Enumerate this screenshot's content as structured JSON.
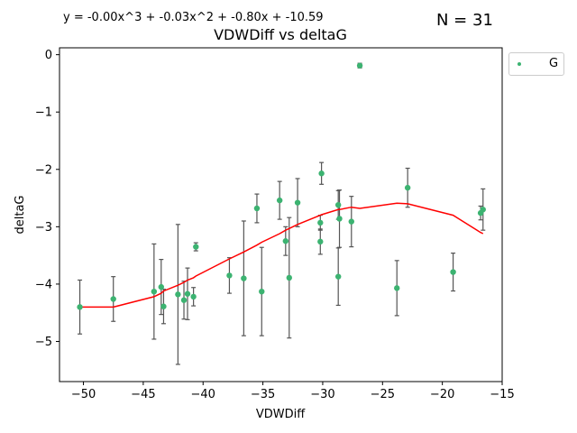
{
  "header": {
    "equation": "y = -0.00x^3 + -0.03x^2 + -0.80x + -10.59",
    "count": "N = 31"
  },
  "chart_data": {
    "type": "scatter",
    "title": "VDWDiff vs deltaG",
    "xlabel": "VDWDiff",
    "ylabel": "deltaG",
    "xlim": [
      -52,
      -15
    ],
    "ylim": [
      -5.7,
      0.12
    ],
    "xticks": [
      -50,
      -45,
      -40,
      -35,
      -30,
      -25,
      -20,
      -15
    ],
    "yticks": [
      0,
      -1,
      -2,
      -3,
      -4,
      -5
    ],
    "xtick_labels": [
      "−50",
      "−45",
      "−40",
      "−35",
      "−30",
      "−25",
      "−20",
      "−15"
    ],
    "ytick_labels": [
      "0",
      "−1",
      "−2",
      "−3",
      "−4",
      "−5"
    ],
    "grid": false,
    "legend": {
      "position": "outside-top-right",
      "entries": [
        "G"
      ]
    },
    "colors": {
      "points": "#3cb371",
      "errorbars": "#555555",
      "fit": "#ff0000"
    },
    "series": [
      {
        "name": "G",
        "points": [
          {
            "x": -50.3,
            "y": -4.4,
            "err": 0.47
          },
          {
            "x": -47.5,
            "y": -4.26,
            "err": 0.39
          },
          {
            "x": -44.1,
            "y": -4.13,
            "err": 0.83
          },
          {
            "x": -43.5,
            "y": -4.05,
            "err": 0.48
          },
          {
            "x": -43.3,
            "y": -4.39,
            "err": 0.3
          },
          {
            "x": -42.1,
            "y": -4.18,
            "err": 1.22
          },
          {
            "x": -41.6,
            "y": -4.28,
            "err": 0.33
          },
          {
            "x": -41.3,
            "y": -4.17,
            "err": 0.45
          },
          {
            "x": -40.8,
            "y": -4.22,
            "err": 0.16
          },
          {
            "x": -40.6,
            "y": -3.35,
            "err": 0.07
          },
          {
            "x": -37.8,
            "y": -3.85,
            "err": 0.31
          },
          {
            "x": -36.6,
            "y": -3.9,
            "err": 1.0
          },
          {
            "x": -35.5,
            "y": -2.68,
            "err": 0.25
          },
          {
            "x": -35.1,
            "y": -4.13,
            "err": 0.77
          },
          {
            "x": -33.6,
            "y": -2.54,
            "err": 0.33
          },
          {
            "x": -33.1,
            "y": -3.25,
            "err": 0.25
          },
          {
            "x": -32.8,
            "y": -3.89,
            "err": 1.05
          },
          {
            "x": -32.1,
            "y": -2.58,
            "err": 0.42
          },
          {
            "x": -30.2,
            "y": -3.26,
            "err": 0.22
          },
          {
            "x": -30.2,
            "y": -2.93,
            "err": 0.13
          },
          {
            "x": -30.1,
            "y": -2.07,
            "err": 0.19
          },
          {
            "x": -28.7,
            "y": -3.87,
            "err": 0.5
          },
          {
            "x": -28.7,
            "y": -2.62,
            "err": 0.25
          },
          {
            "x": -28.6,
            "y": -2.86,
            "err": 0.5
          },
          {
            "x": -27.6,
            "y": -2.91,
            "err": 0.44
          },
          {
            "x": -26.9,
            "y": -0.19,
            "err": 0.04
          },
          {
            "x": -23.8,
            "y": -4.07,
            "err": 0.48
          },
          {
            "x": -22.9,
            "y": -2.32,
            "err": 0.34
          },
          {
            "x": -19.1,
            "y": -3.79,
            "err": 0.33
          },
          {
            "x": -16.8,
            "y": -2.76,
            "err": 0.12
          },
          {
            "x": -16.6,
            "y": -2.7,
            "err": 0.36
          }
        ]
      }
    ],
    "fit_line": {
      "x": [
        -50.3,
        -47.5,
        -44.1,
        -43.5,
        -43.3,
        -42.1,
        -41.6,
        -41.3,
        -40.8,
        -40.6,
        -37.8,
        -36.6,
        -35.5,
        -35.1,
        -33.6,
        -33.1,
        -32.8,
        -32.1,
        -30.2,
        -30.2,
        -30.1,
        -28.7,
        -28.7,
        -28.6,
        -27.6,
        -26.9,
        -23.8,
        -22.9,
        -19.1,
        -16.8,
        -16.6
      ],
      "y": [
        -4.4,
        -4.4,
        -4.22,
        -4.16,
        -4.12,
        -4.02,
        -3.97,
        -3.93,
        -3.89,
        -3.86,
        -3.56,
        -3.44,
        -3.32,
        -3.27,
        -3.12,
        -3.06,
        -3.03,
        -2.96,
        -2.8,
        -2.8,
        -2.79,
        -2.7,
        -2.7,
        -2.7,
        -2.66,
        -2.68,
        -2.59,
        -2.6,
        -2.8,
        -3.1,
        -3.12
      ]
    }
  }
}
